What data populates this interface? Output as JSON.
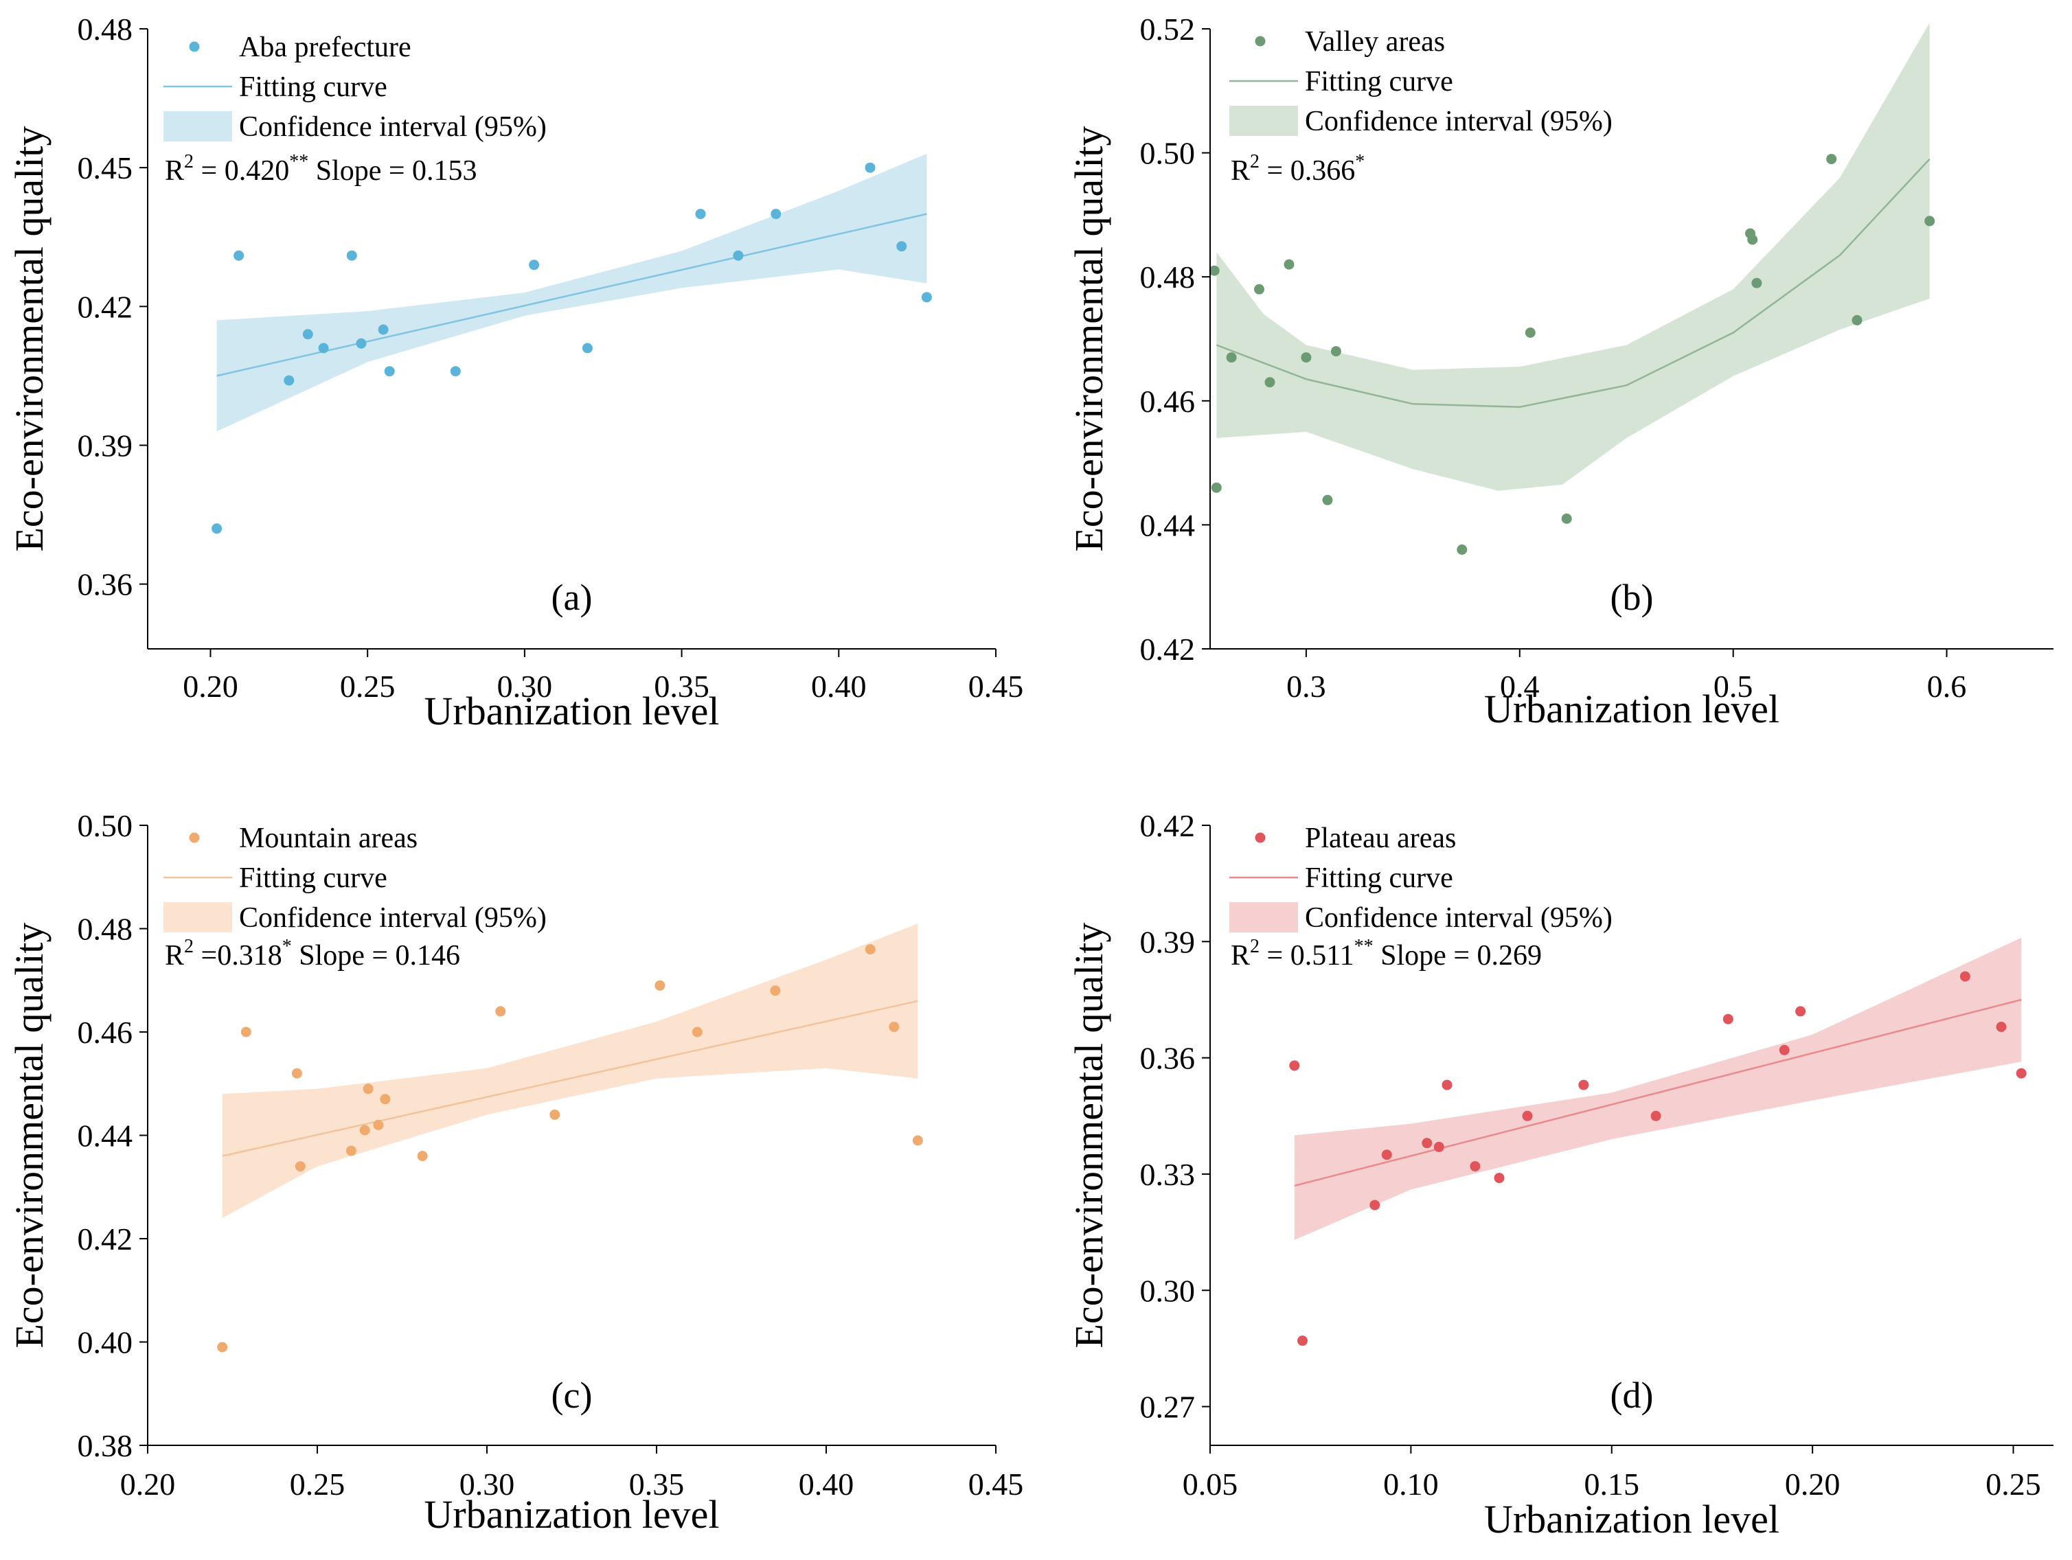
{
  "chart_data": [
    {
      "type": "scatter",
      "panel_label": "(a)",
      "xlabel": "Urbanization level",
      "ylabel": "Eco-environmental quality",
      "xlim": [
        0.18,
        0.45
      ],
      "ylim": [
        0.346,
        0.48
      ],
      "xticks": [
        0.2,
        0.25,
        0.3,
        0.35,
        0.4,
        0.45
      ],
      "xtick_labels": [
        "0.20",
        "0.25",
        "0.30",
        "0.35",
        "0.40",
        "0.45"
      ],
      "yticks": [
        0.36,
        0.39,
        0.42,
        0.45,
        0.48
      ],
      "ytick_labels": [
        "0.36",
        "0.39",
        "0.42",
        "0.45",
        "0.48"
      ],
      "colors": {
        "point": "#5ab4d9",
        "line": "#7fc4e2",
        "band": "#cfe8f2"
      },
      "legend": {
        "points": "Aba prefecture",
        "fit": "Fitting curve",
        "band": "Confidence interval (95%)"
      },
      "stats": {
        "r2_prefix": "R",
        "r2_sup": "2",
        "r2_value": " = 0.420",
        "sig": "**",
        "slope": " Slope = 0.153"
      },
      "points": [
        [
          0.202,
          0.372
        ],
        [
          0.209,
          0.431
        ],
        [
          0.225,
          0.404
        ],
        [
          0.231,
          0.414
        ],
        [
          0.236,
          0.411
        ],
        [
          0.245,
          0.431
        ],
        [
          0.248,
          0.412
        ],
        [
          0.255,
          0.415
        ],
        [
          0.257,
          0.406
        ],
        [
          0.278,
          0.406
        ],
        [
          0.303,
          0.429
        ],
        [
          0.32,
          0.411
        ],
        [
          0.356,
          0.44
        ],
        [
          0.368,
          0.431
        ],
        [
          0.38,
          0.44
        ],
        [
          0.41,
          0.45
        ],
        [
          0.42,
          0.433
        ],
        [
          0.428,
          0.422
        ]
      ],
      "fit": [
        [
          0.202,
          0.405
        ],
        [
          0.428,
          0.44
        ]
      ],
      "band_upper": [
        [
          0.202,
          0.417
        ],
        [
          0.25,
          0.419
        ],
        [
          0.3,
          0.423
        ],
        [
          0.35,
          0.432
        ],
        [
          0.4,
          0.445
        ],
        [
          0.428,
          0.453
        ]
      ],
      "band_lower": [
        [
          0.202,
          0.393
        ],
        [
          0.25,
          0.408
        ],
        [
          0.3,
          0.418
        ],
        [
          0.35,
          0.424
        ],
        [
          0.4,
          0.428
        ],
        [
          0.428,
          0.425
        ]
      ]
    },
    {
      "type": "scatter",
      "panel_label": "(b)",
      "xlabel": "Urbanization level",
      "ylabel": "Eco-environmental quality",
      "xlim": [
        0.255,
        0.65
      ],
      "ylim": [
        0.42,
        0.52
      ],
      "xticks": [
        0.3,
        0.4,
        0.5,
        0.6
      ],
      "xtick_labels": [
        "0.3",
        "0.4",
        "0.5",
        "0.6"
      ],
      "yticks": [
        0.42,
        0.44,
        0.46,
        0.48,
        0.5,
        0.52
      ],
      "ytick_labels": [
        "0.42",
        "0.44",
        "0.46",
        "0.48",
        "0.50",
        "0.52"
      ],
      "colors": {
        "point": "#6c9a72",
        "line": "#93b597",
        "band": "#d5e4d4"
      },
      "legend": {
        "points": "Valley areas",
        "fit": "Fitting curve",
        "band": "Confidence interval (95%)"
      },
      "stats": {
        "r2_prefix": "R",
        "r2_sup": "2",
        "r2_value": " = 0.366",
        "sig": "*",
        "slope": ""
      },
      "points": [
        [
          0.257,
          0.481
        ],
        [
          0.258,
          0.446
        ],
        [
          0.265,
          0.467
        ],
        [
          0.278,
          0.478
        ],
        [
          0.283,
          0.463
        ],
        [
          0.292,
          0.482
        ],
        [
          0.3,
          0.467
        ],
        [
          0.31,
          0.444
        ],
        [
          0.314,
          0.468
        ],
        [
          0.373,
          0.436
        ],
        [
          0.405,
          0.471
        ],
        [
          0.422,
          0.441
        ],
        [
          0.508,
          0.487
        ],
        [
          0.509,
          0.486
        ],
        [
          0.511,
          0.479
        ],
        [
          0.546,
          0.499
        ],
        [
          0.558,
          0.473
        ],
        [
          0.592,
          0.489
        ]
      ],
      "fit": [
        [
          0.258,
          0.469
        ],
        [
          0.3,
          0.4635
        ],
        [
          0.35,
          0.4595
        ],
        [
          0.4,
          0.459
        ],
        [
          0.45,
          0.4625
        ],
        [
          0.5,
          0.471
        ],
        [
          0.55,
          0.4835
        ],
        [
          0.592,
          0.499
        ]
      ],
      "band_upper": [
        [
          0.258,
          0.484
        ],
        [
          0.28,
          0.474
        ],
        [
          0.3,
          0.469
        ],
        [
          0.35,
          0.465
        ],
        [
          0.4,
          0.4655
        ],
        [
          0.45,
          0.469
        ],
        [
          0.5,
          0.478
        ],
        [
          0.55,
          0.496
        ],
        [
          0.592,
          0.521
        ]
      ],
      "band_lower": [
        [
          0.258,
          0.454
        ],
        [
          0.3,
          0.455
        ],
        [
          0.35,
          0.449
        ],
        [
          0.39,
          0.4455
        ],
        [
          0.42,
          0.4465
        ],
        [
          0.45,
          0.454
        ],
        [
          0.5,
          0.464
        ],
        [
          0.55,
          0.4715
        ],
        [
          0.592,
          0.4765
        ]
      ]
    },
    {
      "type": "scatter",
      "panel_label": "(c)",
      "xlabel": "Urbanization level",
      "ylabel": "Eco-environmental quality",
      "xlim": [
        0.2,
        0.45
      ],
      "ylim": [
        0.38,
        0.5
      ],
      "xticks": [
        0.2,
        0.25,
        0.3,
        0.35,
        0.4,
        0.45
      ],
      "xtick_labels": [
        "0.20",
        "0.25",
        "0.30",
        "0.35",
        "0.40",
        "0.45"
      ],
      "yticks": [
        0.38,
        0.4,
        0.42,
        0.44,
        0.46,
        0.48,
        0.5
      ],
      "ytick_labels": [
        "0.38",
        "0.40",
        "0.42",
        "0.44",
        "0.46",
        "0.48",
        "0.50"
      ],
      "colors": {
        "point": "#f0aa6e",
        "line": "#f3c49c",
        "band": "#fbe3d0"
      },
      "legend": {
        "points": "Mountain areas",
        "fit": "Fitting curve",
        "band": "Confidence interval (95%)"
      },
      "stats": {
        "r2_prefix": "R",
        "r2_sup": "2",
        "r2_value": " =0.318",
        "sig": "*",
        "slope": " Slope = 0.146"
      },
      "points": [
        [
          0.222,
          0.399
        ],
        [
          0.229,
          0.46
        ],
        [
          0.244,
          0.452
        ],
        [
          0.245,
          0.434
        ],
        [
          0.26,
          0.437
        ],
        [
          0.264,
          0.441
        ],
        [
          0.265,
          0.449
        ],
        [
          0.268,
          0.442
        ],
        [
          0.27,
          0.447
        ],
        [
          0.281,
          0.436
        ],
        [
          0.304,
          0.464
        ],
        [
          0.32,
          0.444
        ],
        [
          0.351,
          0.469
        ],
        [
          0.362,
          0.46
        ],
        [
          0.385,
          0.468
        ],
        [
          0.413,
          0.476
        ],
        [
          0.42,
          0.461
        ],
        [
          0.427,
          0.439
        ]
      ],
      "fit": [
        [
          0.222,
          0.436
        ],
        [
          0.427,
          0.466
        ]
      ],
      "band_upper": [
        [
          0.222,
          0.448
        ],
        [
          0.25,
          0.449
        ],
        [
          0.3,
          0.453
        ],
        [
          0.35,
          0.462
        ],
        [
          0.4,
          0.474
        ],
        [
          0.427,
          0.481
        ]
      ],
      "band_lower": [
        [
          0.222,
          0.424
        ],
        [
          0.25,
          0.434
        ],
        [
          0.3,
          0.444
        ],
        [
          0.35,
          0.451
        ],
        [
          0.4,
          0.453
        ],
        [
          0.427,
          0.451
        ]
      ]
    },
    {
      "type": "scatter",
      "panel_label": "(d)",
      "xlabel": "Urbanization level",
      "ylabel": "Eco-environmental quality",
      "xlim": [
        0.05,
        0.26
      ],
      "ylim": [
        0.26,
        0.42
      ],
      "xticks": [
        0.05,
        0.1,
        0.15,
        0.2,
        0.25
      ],
      "xtick_labels": [
        "0.05",
        "0.10",
        "0.15",
        "0.20",
        "0.25"
      ],
      "yticks": [
        0.27,
        0.3,
        0.33,
        0.36,
        0.39,
        0.42
      ],
      "ytick_labels": [
        "0.27",
        "0.30",
        "0.33",
        "0.36",
        "0.39",
        "0.42"
      ],
      "colors": {
        "point": "#e1555a",
        "line": "#e98a8c",
        "band": "#f6d0d1"
      },
      "legend": {
        "points": "Plateau areas",
        "fit": "Fitting curve",
        "band": "Confidence interval (95%)"
      },
      "stats": {
        "r2_prefix": "R",
        "r2_sup": "2",
        "r2_value": " = 0.511",
        "sig": "**",
        "slope": " Slope = 0.269"
      },
      "points": [
        [
          0.071,
          0.358
        ],
        [
          0.073,
          0.287
        ],
        [
          0.091,
          0.322
        ],
        [
          0.094,
          0.335
        ],
        [
          0.104,
          0.338
        ],
        [
          0.107,
          0.337
        ],
        [
          0.109,
          0.353
        ],
        [
          0.116,
          0.332
        ],
        [
          0.122,
          0.329
        ],
        [
          0.129,
          0.345
        ],
        [
          0.143,
          0.353
        ],
        [
          0.161,
          0.345
        ],
        [
          0.179,
          0.37
        ],
        [
          0.193,
          0.362
        ],
        [
          0.197,
          0.372
        ],
        [
          0.238,
          0.381
        ],
        [
          0.247,
          0.368
        ],
        [
          0.252,
          0.356
        ]
      ],
      "fit": [
        [
          0.071,
          0.327
        ],
        [
          0.252,
          0.375
        ]
      ],
      "band_upper": [
        [
          0.071,
          0.34
        ],
        [
          0.1,
          0.343
        ],
        [
          0.15,
          0.351
        ],
        [
          0.2,
          0.366
        ],
        [
          0.252,
          0.391
        ]
      ],
      "band_lower": [
        [
          0.071,
          0.313
        ],
        [
          0.1,
          0.326
        ],
        [
          0.15,
          0.339
        ],
        [
          0.2,
          0.349
        ],
        [
          0.252,
          0.359
        ]
      ]
    }
  ]
}
